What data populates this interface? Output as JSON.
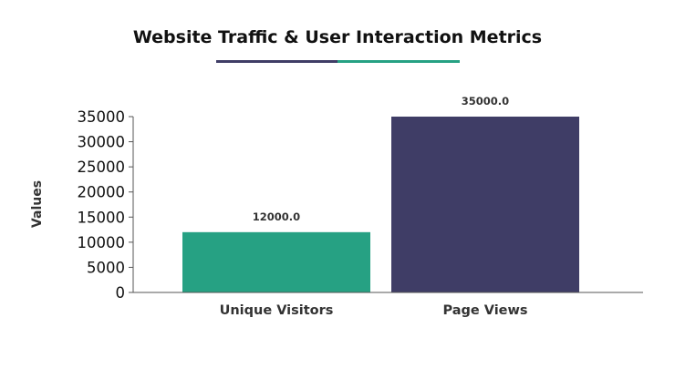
{
  "chart_data": {
    "type": "bar",
    "title": "Website Traffic & User Interaction Metrics",
    "xlabel": "",
    "ylabel": "Values",
    "categories": [
      "Unique Visitors",
      "Page Views"
    ],
    "values": [
      12000,
      35000
    ],
    "data_labels": [
      "12000.0",
      "35000.0"
    ],
    "bar_colors": [
      "#26a183",
      "#3f3d66"
    ],
    "ylim": [
      0,
      35000
    ],
    "yticks": [
      0,
      5000,
      10000,
      15000,
      20000,
      25000,
      30000,
      35000
    ],
    "ytick_labels": [
      "0",
      "5000",
      "10000",
      "15000",
      "20000",
      "25000",
      "30000",
      "35000"
    ],
    "title_underline_colors": [
      "#3f3d66",
      "#26a183"
    ],
    "grid": false,
    "legend": "none"
  }
}
